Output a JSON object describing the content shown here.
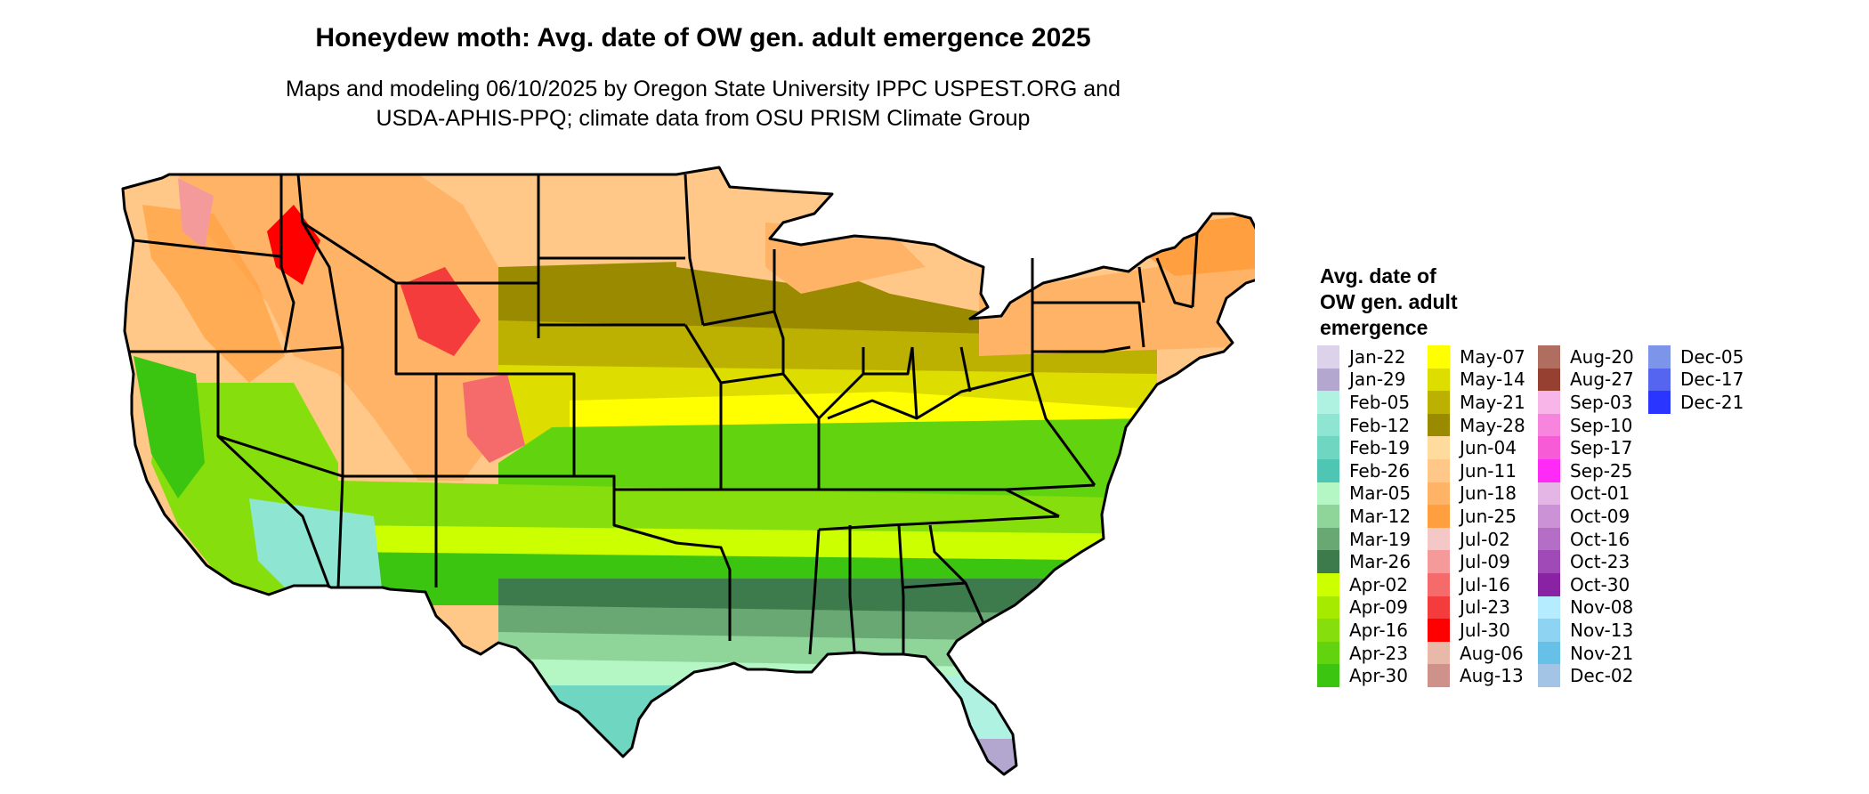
{
  "header": {
    "title": "Honeydew moth: Avg. date of OW gen. adult emergence 2025",
    "subtitle_line1": "Maps and modeling 06/10/2025 by Oregon State University IPPC USPEST.ORG and",
    "subtitle_line2": "USDA-APHIS-PPQ; climate data from OSU PRISM Climate Group"
  },
  "legend": {
    "title_line1": "Avg. date of",
    "title_line2": "OW gen. adult",
    "title_line3": "emergence",
    "columns": [
      [
        {
          "label": "Jan-22",
          "color": "#dcd3ea"
        },
        {
          "label": "Jan-29",
          "color": "#b3a6cf"
        },
        {
          "label": "Feb-05",
          "color": "#b0f2e2"
        },
        {
          "label": "Feb-12",
          "color": "#8ee6d2"
        },
        {
          "label": "Feb-19",
          "color": "#6fd6c2"
        },
        {
          "label": "Feb-26",
          "color": "#4fc6b3"
        },
        {
          "label": "Mar-05",
          "color": "#b4f7c5"
        },
        {
          "label": "Mar-12",
          "color": "#8fd59a"
        },
        {
          "label": "Mar-19",
          "color": "#69a873"
        },
        {
          "label": "Mar-26",
          "color": "#3e7b4c"
        },
        {
          "label": "Apr-02",
          "color": "#ccff00"
        },
        {
          "label": "Apr-09",
          "color": "#a6ea00"
        },
        {
          "label": "Apr-16",
          "color": "#86de0c"
        },
        {
          "label": "Apr-23",
          "color": "#62d30f"
        },
        {
          "label": "Apr-30",
          "color": "#3cc510"
        }
      ],
      [
        {
          "label": "May-07",
          "color": "#ffff00"
        },
        {
          "label": "May-14",
          "color": "#dddd00"
        },
        {
          "label": "May-21",
          "color": "#bcb000"
        },
        {
          "label": "May-28",
          "color": "#9a8a00"
        },
        {
          "label": "Jun-04",
          "color": "#ffdc9e"
        },
        {
          "label": "Jun-11",
          "color": "#ffc888"
        },
        {
          "label": "Jun-18",
          "color": "#ffb366"
        },
        {
          "label": "Jun-25",
          "color": "#ff9f40"
        },
        {
          "label": "Jul-02",
          "color": "#f5c8c8"
        },
        {
          "label": "Jul-09",
          "color": "#f59a9a"
        },
        {
          "label": "Jul-16",
          "color": "#f56b6b"
        },
        {
          "label": "Jul-23",
          "color": "#f53c3c"
        },
        {
          "label": "Jul-30",
          "color": "#ff0000"
        },
        {
          "label": "Aug-06",
          "color": "#e8b8a8"
        },
        {
          "label": "Aug-13",
          "color": "#cf928a"
        }
      ],
      [
        {
          "label": "Aug-20",
          "color": "#b06e60"
        },
        {
          "label": "Aug-27",
          "color": "#964032"
        },
        {
          "label": "Sep-03",
          "color": "#f8b6e8"
        },
        {
          "label": "Sep-10",
          "color": "#f885dd"
        },
        {
          "label": "Sep-17",
          "color": "#f85bd6"
        },
        {
          "label": "Sep-25",
          "color": "#ff2af5"
        },
        {
          "label": "Oct-01",
          "color": "#e3b6e6"
        },
        {
          "label": "Oct-09",
          "color": "#cc92d6"
        },
        {
          "label": "Oct-16",
          "color": "#b56ec6"
        },
        {
          "label": "Oct-23",
          "color": "#a04ab8"
        },
        {
          "label": "Oct-30",
          "color": "#8a22a4"
        },
        {
          "label": "Nov-08",
          "color": "#b6ecff"
        },
        {
          "label": "Nov-13",
          "color": "#8ed4f2"
        },
        {
          "label": "Nov-21",
          "color": "#66c0e8"
        },
        {
          "label": "Dec-02",
          "color": "#a4c4e6"
        }
      ],
      [
        {
          "label": "Dec-05",
          "color": "#7d95e8"
        },
        {
          "label": "Dec-17",
          "color": "#5665f0"
        },
        {
          "label": "Dec-21",
          "color": "#2a35ff"
        }
      ]
    ]
  }
}
